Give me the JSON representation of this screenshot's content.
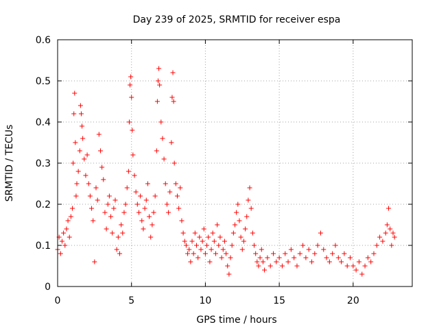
{
  "chart_data": {
    "type": "scatter",
    "title": "Day 239 of 2025, SRMTID for receiver espa",
    "xlabel": "GPS time / hours",
    "ylabel": "SRMTID / TECUs",
    "xlim": [
      0,
      24
    ],
    "ylim": [
      0,
      0.6
    ],
    "xticks": [
      "0",
      "5",
      "10",
      "15",
      "20"
    ],
    "xtick_values": [
      0,
      5,
      10,
      15,
      20
    ],
    "yticks": [
      "0",
      "0.1",
      "0.2",
      "0.3",
      "0.4",
      "0.5",
      "0.6"
    ],
    "ytick_values": [
      0,
      0.1,
      0.2,
      0.3,
      0.4,
      0.5,
      0.6
    ],
    "grid": true,
    "marker": "+",
    "color": "#ff0000",
    "series": [
      {
        "name": "espa",
        "points": [
          [
            0.0,
            0.09
          ],
          [
            0.1,
            0.12
          ],
          [
            0.2,
            0.08
          ],
          [
            0.3,
            0.11
          ],
          [
            0.4,
            0.13
          ],
          [
            0.5,
            0.1
          ],
          [
            0.6,
            0.14
          ],
          [
            0.7,
            0.16
          ],
          [
            0.8,
            0.12
          ],
          [
            0.9,
            0.17
          ],
          [
            1.0,
            0.19
          ],
          [
            1.05,
            0.3
          ],
          [
            1.1,
            0.42
          ],
          [
            1.15,
            0.47
          ],
          [
            1.2,
            0.35
          ],
          [
            1.25,
            0.22
          ],
          [
            1.3,
            0.25
          ],
          [
            1.4,
            0.28
          ],
          [
            1.5,
            0.33
          ],
          [
            1.55,
            0.44
          ],
          [
            1.6,
            0.42
          ],
          [
            1.65,
            0.39
          ],
          [
            1.7,
            0.36
          ],
          [
            1.8,
            0.31
          ],
          [
            1.9,
            0.27
          ],
          [
            2.0,
            0.32
          ],
          [
            2.1,
            0.25
          ],
          [
            2.2,
            0.22
          ],
          [
            2.3,
            0.19
          ],
          [
            2.4,
            0.16
          ],
          [
            2.5,
            0.06
          ],
          [
            2.6,
            0.24
          ],
          [
            2.7,
            0.21
          ],
          [
            2.8,
            0.37
          ],
          [
            2.9,
            0.33
          ],
          [
            3.0,
            0.29
          ],
          [
            3.1,
            0.26
          ],
          [
            3.2,
            0.18
          ],
          [
            3.3,
            0.14
          ],
          [
            3.4,
            0.2
          ],
          [
            3.5,
            0.22
          ],
          [
            3.6,
            0.17
          ],
          [
            3.7,
            0.13
          ],
          [
            3.8,
            0.19
          ],
          [
            3.9,
            0.21
          ],
          [
            4.0,
            0.09
          ],
          [
            4.1,
            0.12
          ],
          [
            4.2,
            0.08
          ],
          [
            4.3,
            0.15
          ],
          [
            4.4,
            0.13
          ],
          [
            4.5,
            0.18
          ],
          [
            4.6,
            0.2
          ],
          [
            4.7,
            0.24
          ],
          [
            4.8,
            0.28
          ],
          [
            4.85,
            0.4
          ],
          [
            4.9,
            0.49
          ],
          [
            4.95,
            0.51
          ],
          [
            5.0,
            0.46
          ],
          [
            5.05,
            0.38
          ],
          [
            5.1,
            0.32
          ],
          [
            5.2,
            0.27
          ],
          [
            5.3,
            0.23
          ],
          [
            5.4,
            0.2
          ],
          [
            5.5,
            0.18
          ],
          [
            5.6,
            0.22
          ],
          [
            5.7,
            0.16
          ],
          [
            5.8,
            0.14
          ],
          [
            5.9,
            0.19
          ],
          [
            6.0,
            0.21
          ],
          [
            6.1,
            0.25
          ],
          [
            6.2,
            0.17
          ],
          [
            6.3,
            0.12
          ],
          [
            6.4,
            0.15
          ],
          [
            6.5,
            0.18
          ],
          [
            6.6,
            0.22
          ],
          [
            6.7,
            0.33
          ],
          [
            6.75,
            0.45
          ],
          [
            6.8,
            0.5
          ],
          [
            6.85,
            0.53
          ],
          [
            6.9,
            0.49
          ],
          [
            7.0,
            0.4
          ],
          [
            7.1,
            0.36
          ],
          [
            7.2,
            0.31
          ],
          [
            7.3,
            0.25
          ],
          [
            7.4,
            0.2
          ],
          [
            7.5,
            0.18
          ],
          [
            7.6,
            0.23
          ],
          [
            7.7,
            0.35
          ],
          [
            7.75,
            0.46
          ],
          [
            7.8,
            0.52
          ],
          [
            7.85,
            0.45
          ],
          [
            7.9,
            0.3
          ],
          [
            8.0,
            0.25
          ],
          [
            8.1,
            0.22
          ],
          [
            8.2,
            0.19
          ],
          [
            8.3,
            0.24
          ],
          [
            8.4,
            0.16
          ],
          [
            8.5,
            0.13
          ],
          [
            8.6,
            0.11
          ],
          [
            8.7,
            0.1
          ],
          [
            8.8,
            0.08
          ],
          [
            8.9,
            0.09
          ],
          [
            9.0,
            0.06
          ],
          [
            9.1,
            0.11
          ],
          [
            9.2,
            0.08
          ],
          [
            9.3,
            0.13
          ],
          [
            9.4,
            0.1
          ],
          [
            9.5,
            0.07
          ],
          [
            9.6,
            0.12
          ],
          [
            9.7,
            0.09
          ],
          [
            9.8,
            0.11
          ],
          [
            9.9,
            0.14
          ],
          [
            10.0,
            0.08
          ],
          [
            10.1,
            0.1
          ],
          [
            10.2,
            0.12
          ],
          [
            10.3,
            0.06
          ],
          [
            10.4,
            0.09
          ],
          [
            10.5,
            0.13
          ],
          [
            10.6,
            0.11
          ],
          [
            10.7,
            0.08
          ],
          [
            10.8,
            0.15
          ],
          [
            10.9,
            0.1
          ],
          [
            11.0,
            0.12
          ],
          [
            11.1,
            0.07
          ],
          [
            11.2,
            0.09
          ],
          [
            11.3,
            0.11
          ],
          [
            11.4,
            0.08
          ],
          [
            11.5,
            0.05
          ],
          [
            11.6,
            0.03
          ],
          [
            11.7,
            0.07
          ],
          [
            11.8,
            0.1
          ],
          [
            11.9,
            0.13
          ],
          [
            12.0,
            0.15
          ],
          [
            12.1,
            0.18
          ],
          [
            12.2,
            0.2
          ],
          [
            12.3,
            0.16
          ],
          [
            12.4,
            0.12
          ],
          [
            12.5,
            0.09
          ],
          [
            12.6,
            0.11
          ],
          [
            12.7,
            0.14
          ],
          [
            12.8,
            0.17
          ],
          [
            12.9,
            0.21
          ],
          [
            13.0,
            0.24
          ],
          [
            13.1,
            0.19
          ],
          [
            13.2,
            0.13
          ],
          [
            13.3,
            0.1
          ],
          [
            13.4,
            0.08
          ],
          [
            13.5,
            0.06
          ],
          [
            13.6,
            0.05
          ],
          [
            13.7,
            0.07
          ],
          [
            13.8,
            0.09
          ],
          [
            13.9,
            0.06
          ],
          [
            14.0,
            0.04
          ],
          [
            14.2,
            0.07
          ],
          [
            14.4,
            0.05
          ],
          [
            14.6,
            0.08
          ],
          [
            14.8,
            0.06
          ],
          [
            15.0,
            0.07
          ],
          [
            15.2,
            0.05
          ],
          [
            15.4,
            0.08
          ],
          [
            15.6,
            0.06
          ],
          [
            15.8,
            0.09
          ],
          [
            16.0,
            0.07
          ],
          [
            16.2,
            0.05
          ],
          [
            16.4,
            0.08
          ],
          [
            16.6,
            0.1
          ],
          [
            16.8,
            0.07
          ],
          [
            17.0,
            0.09
          ],
          [
            17.2,
            0.06
          ],
          [
            17.4,
            0.08
          ],
          [
            17.6,
            0.1
          ],
          [
            17.8,
            0.13
          ],
          [
            18.0,
            0.09
          ],
          [
            18.2,
            0.07
          ],
          [
            18.4,
            0.06
          ],
          [
            18.6,
            0.08
          ],
          [
            18.8,
            0.1
          ],
          [
            19.0,
            0.07
          ],
          [
            19.2,
            0.06
          ],
          [
            19.4,
            0.08
          ],
          [
            19.6,
            0.05
          ],
          [
            19.8,
            0.07
          ],
          [
            20.0,
            0.05
          ],
          [
            20.2,
            0.04
          ],
          [
            20.4,
            0.06
          ],
          [
            20.6,
            0.03
          ],
          [
            20.8,
            0.05
          ],
          [
            21.0,
            0.07
          ],
          [
            21.2,
            0.06
          ],
          [
            21.4,
            0.08
          ],
          [
            21.6,
            0.1
          ],
          [
            21.8,
            0.12
          ],
          [
            22.0,
            0.11
          ],
          [
            22.2,
            0.13
          ],
          [
            22.3,
            0.15
          ],
          [
            22.4,
            0.19
          ],
          [
            22.5,
            0.14
          ],
          [
            22.6,
            0.1
          ],
          [
            22.7,
            0.13
          ],
          [
            22.8,
            0.12
          ]
        ]
      }
    ]
  }
}
